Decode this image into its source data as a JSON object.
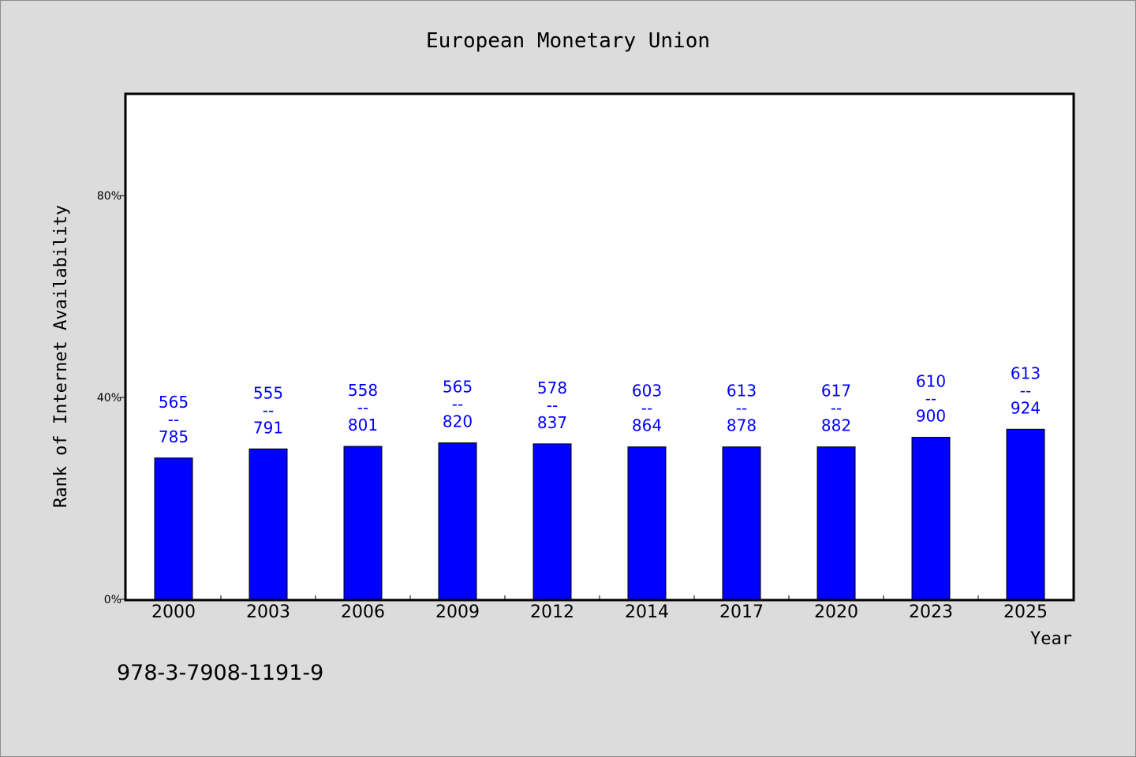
{
  "chart_data": {
    "type": "bar",
    "title": "European Monetary Union",
    "xlabel": "Year",
    "ylabel": "Rank of Internet Availability",
    "categories": [
      "2000",
      "2003",
      "2006",
      "2009",
      "2012",
      "2014",
      "2017",
      "2020",
      "2023",
      "2025"
    ],
    "values": [
      28,
      29.8,
      30.3,
      31,
      30.8,
      30.2,
      30.2,
      30.2,
      32.1,
      33.7
    ],
    "value_unit": "%",
    "data_labels": [
      [
        "565",
        "--",
        "785"
      ],
      [
        "555",
        "--",
        "791"
      ],
      [
        "558",
        "--",
        "801"
      ],
      [
        "565",
        "--",
        "820"
      ],
      [
        "578",
        "--",
        "837"
      ],
      [
        "603",
        "--",
        "864"
      ],
      [
        "613",
        "--",
        "878"
      ],
      [
        "617",
        "--",
        "882"
      ],
      [
        "610",
        "--",
        "900"
      ],
      [
        "613",
        "--",
        "924"
      ]
    ],
    "ylim": [
      0,
      100
    ],
    "yticks": [
      0,
      40,
      80
    ],
    "ytick_labels": [
      "0%",
      "40%",
      "80%"
    ],
    "grid": false,
    "colors": {
      "bar": "#0000ff",
      "bar_edge": "#000000",
      "data_label": "#0000ff",
      "plot_bg": "#ffffff",
      "page_bg": "#dcdcdc"
    }
  },
  "footer": {
    "isbn": "978-3-7908-1191-9"
  }
}
